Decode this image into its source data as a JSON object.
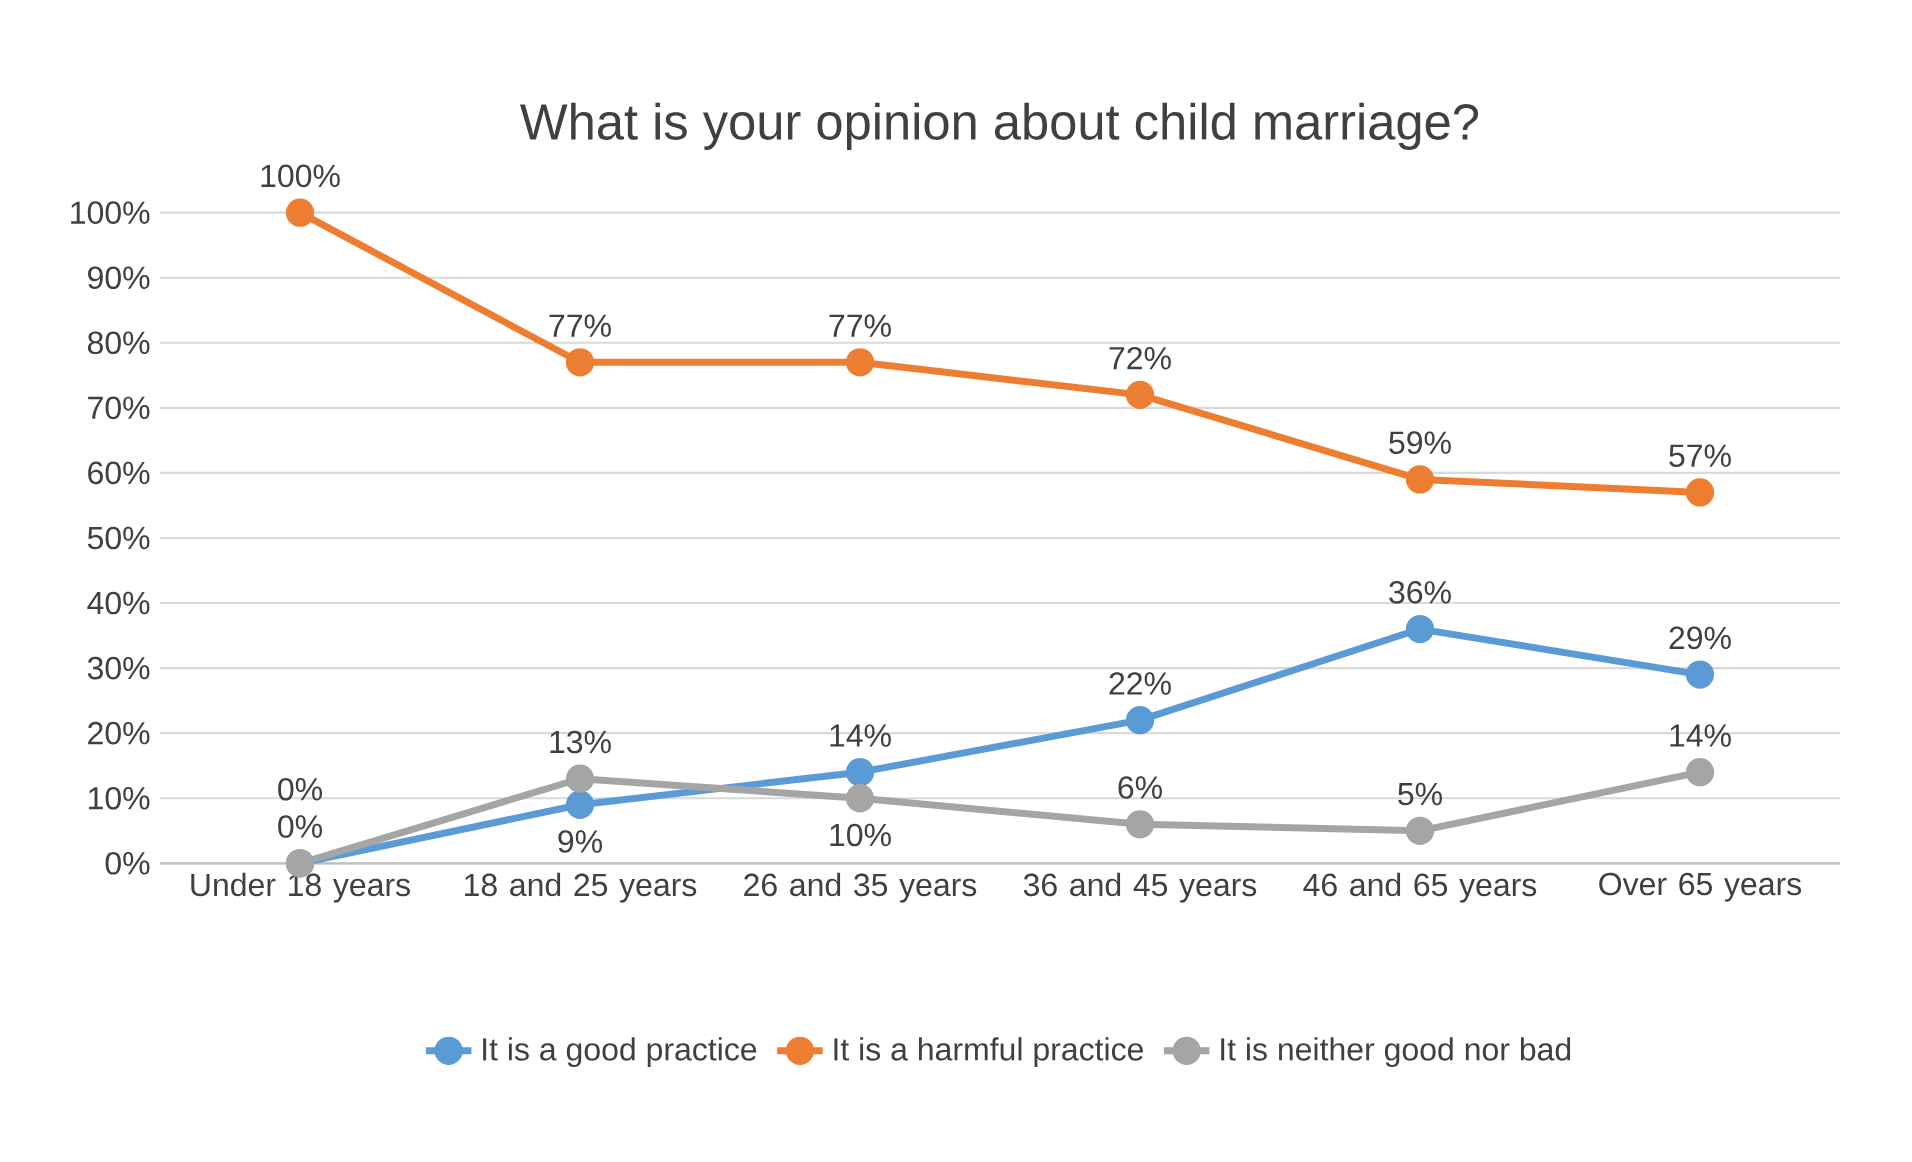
{
  "chart_data": {
    "type": "line",
    "title": "What is your opinion about child marriage?",
    "categories": [
      "Under 18 years",
      "18 and 25 years",
      "26 and 35 years",
      "36 and 45 years",
      "46 and 65 years",
      "Over 65 years"
    ],
    "series": [
      {
        "name": "It is a good practice",
        "color": "#5b9bd5",
        "values": [
          0,
          9,
          14,
          22,
          36,
          29
        ],
        "value_labels": [
          "0%",
          "9%",
          "14%",
          "22%",
          "36%",
          "29%"
        ]
      },
      {
        "name": "It is a harmful practice",
        "color": "#ed7d31",
        "values": [
          100,
          77,
          77,
          72,
          59,
          57
        ],
        "value_labels": [
          "100%",
          "77%",
          "77%",
          "72%",
          "59%",
          "57%"
        ]
      },
      {
        "name": "It is neither good nor bad",
        "color": "#a5a5a5",
        "values": [
          0,
          13,
          10,
          6,
          5,
          14
        ],
        "value_labels": [
          "0%",
          "13%",
          "10%",
          "6%",
          "5%",
          "14%"
        ]
      }
    ],
    "ylim": [
      0,
      100
    ],
    "yticks": [
      {
        "value": 0,
        "label": "0%"
      },
      {
        "value": 10,
        "label": "10%"
      },
      {
        "value": 20,
        "label": "20%"
      },
      {
        "value": 30,
        "label": "30%"
      },
      {
        "value": 40,
        "label": "40%"
      },
      {
        "value": 50,
        "label": "50%"
      },
      {
        "value": 60,
        "label": "60%"
      },
      {
        "value": 70,
        "label": "70%"
      },
      {
        "value": 80,
        "label": "80%"
      },
      {
        "value": 90,
        "label": "90%"
      },
      {
        "value": 100,
        "label": "100%"
      }
    ],
    "grid": "y",
    "legend": "bottom",
    "marker": "circle",
    "line_style": "solid"
  }
}
